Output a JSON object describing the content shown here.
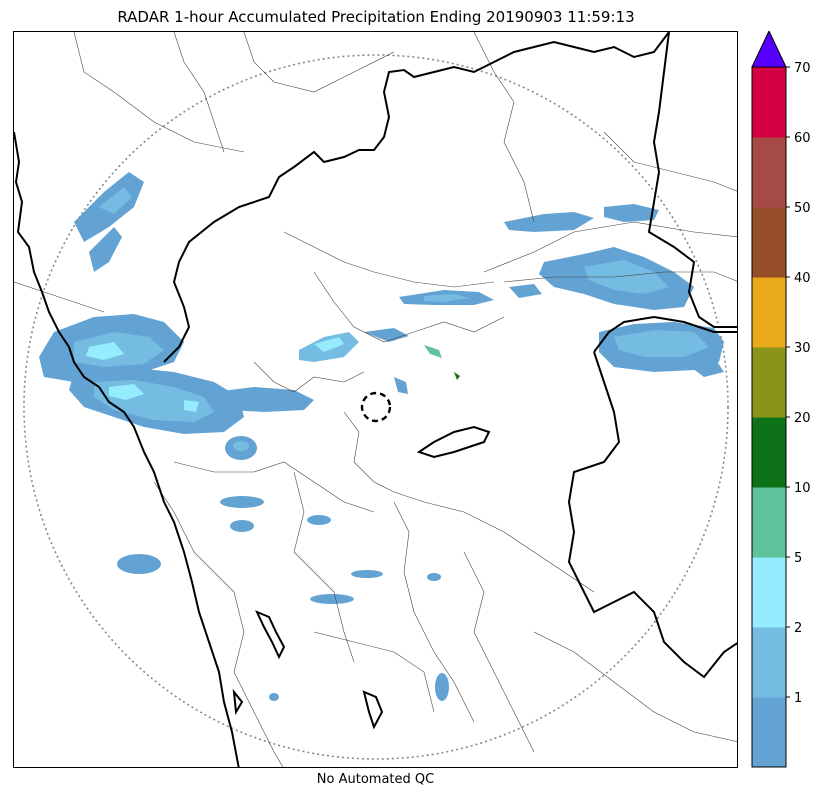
{
  "header": {
    "title": "RADAR 1-hour Accumulated Precipitation Ending 20190903 11:59:13"
  },
  "footer": {
    "qc_note": "No Automated QC"
  },
  "colorbar": {
    "extend": "max",
    "extend_color": "#5500ff",
    "bins": [
      {
        "color": "#63a3d4"
      },
      {
        "color": "#75bce2"
      },
      {
        "color": "#96ecff"
      },
      {
        "color": "#5ec39a"
      },
      {
        "color": "#0e7318"
      },
      {
        "color": "#8a9418"
      },
      {
        "color": "#e8aa1a"
      },
      {
        "color": "#964e28"
      },
      {
        "color": "#a54a46"
      },
      {
        "color": "#d50043"
      }
    ],
    "ticks": [
      "1",
      "2",
      "5",
      "10",
      "20",
      "30",
      "40",
      "50",
      "60",
      "70"
    ]
  },
  "map": {
    "range_ring": "dotted",
    "radar_marker": "dashed-circle",
    "boundary_colors": {
      "coast": "#000000",
      "district": "#444444",
      "ring": "#888888"
    }
  }
}
